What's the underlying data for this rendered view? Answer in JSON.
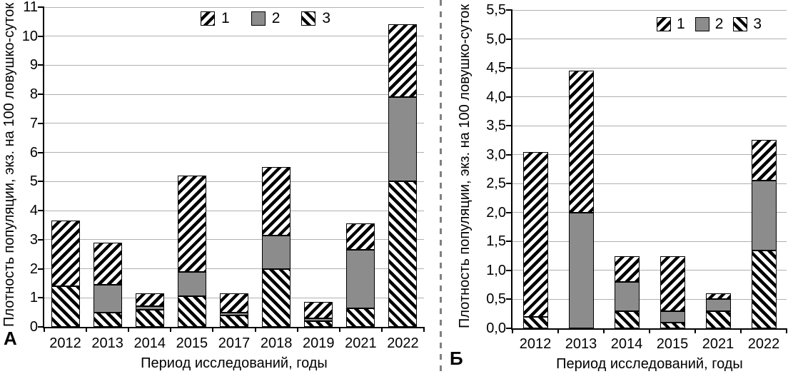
{
  "figure": {
    "background": "#ffffff"
  },
  "colors": {
    "bar_gray_fill": "#8c8c8c",
    "bar_border": "#000000",
    "gridline": "#b0b0b0",
    "axis": "#000000",
    "divider": "#808080",
    "text": "#000000"
  },
  "chart_data": [
    {
      "panel_label": "А",
      "type": "bar",
      "stacked": true,
      "title": "",
      "xlabel": "Период исследований, годы",
      "ylabel": "Плотность популяции, экз. на 100 ловушко-суток",
      "ylim": [
        0,
        11
      ],
      "ytick_step": 1,
      "decimal_comma": false,
      "grid": true,
      "legend_position": "top-inside",
      "legend_labels": [
        "1",
        "2",
        "3"
      ],
      "categories": [
        "2012",
        "2013",
        "2014",
        "2015",
        "2017",
        "2018",
        "2019",
        "2021",
        "2022"
      ],
      "series": [
        {
          "name": "3",
          "pattern": "hatch-back",
          "values": [
            1.4,
            0.5,
            0.6,
            1.05,
            0.4,
            2.0,
            0.2,
            0.65,
            5.0
          ]
        },
        {
          "name": "2",
          "pattern": "solid-gray",
          "values": [
            0,
            0.95,
            0.1,
            0.85,
            0.1,
            1.15,
            0.1,
            2.0,
            2.9
          ]
        },
        {
          "name": "1",
          "pattern": "hatch-forward",
          "values": [
            2.25,
            1.45,
            0.45,
            3.3,
            0.65,
            2.35,
            0.55,
            0.9,
            2.5
          ]
        }
      ],
      "totals": [
        3.65,
        2.9,
        1.15,
        5.2,
        1.15,
        5.5,
        0.85,
        3.55,
        10.4
      ]
    },
    {
      "panel_label": "Б",
      "type": "bar",
      "stacked": true,
      "title": "",
      "xlabel": "Период исследований, годы",
      "ylabel": "Плотность популяции, экз. на 100 ловушко-суток",
      "ylim": [
        0,
        5.5
      ],
      "ytick_step": 0.5,
      "decimal_comma": true,
      "grid": true,
      "legend_position": "top-inside",
      "legend_labels": [
        "1",
        "2",
        "3"
      ],
      "categories": [
        "2012",
        "2013",
        "2014",
        "2015",
        "2021",
        "2022"
      ],
      "series": [
        {
          "name": "3",
          "pattern": "hatch-back",
          "values": [
            0.2,
            0,
            0.3,
            0.1,
            0.3,
            1.35
          ]
        },
        {
          "name": "2",
          "pattern": "solid-gray",
          "values": [
            0,
            2.0,
            0.5,
            0.2,
            0.2,
            1.2
          ]
        },
        {
          "name": "1",
          "pattern": "hatch-forward",
          "values": [
            2.85,
            2.45,
            0.45,
            0.95,
            0.1,
            0.7
          ]
        }
      ],
      "totals": [
        3.05,
        4.45,
        1.25,
        1.25,
        0.6,
        3.25
      ]
    }
  ]
}
